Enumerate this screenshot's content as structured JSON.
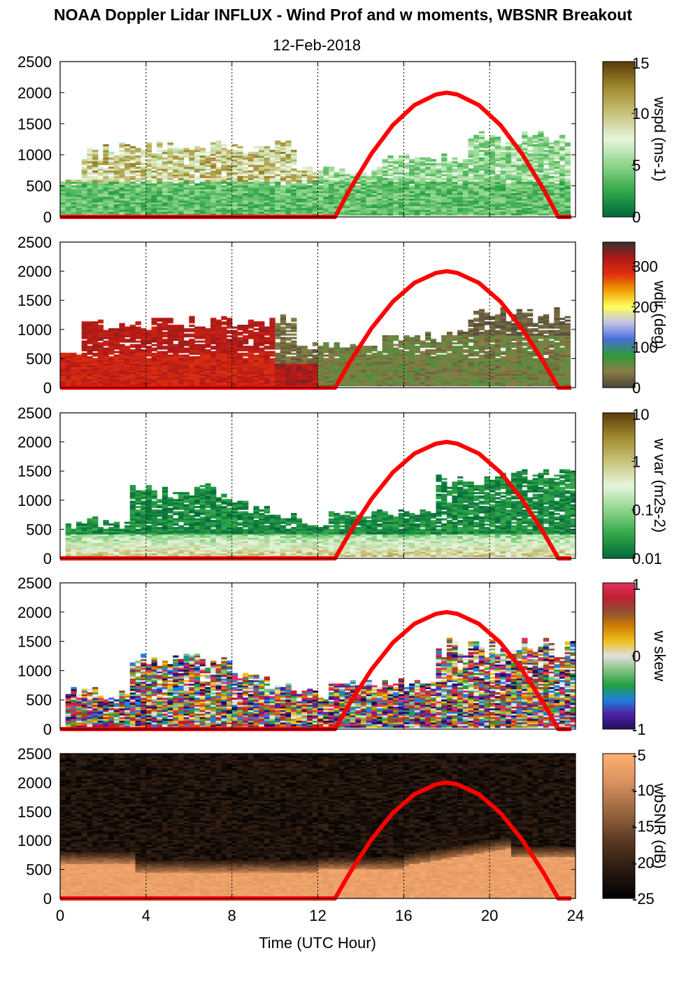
{
  "title": "NOAA Doppler Lidar INFLUX - Wind Prof and w moments, WBSNR Breakout",
  "date": "12-Feb-2018",
  "chart_data": {
    "type": "heatmap",
    "xlabel": "Time (UTC Hour)",
    "xlim": [
      0,
      24
    ],
    "xticks": [
      "0",
      "4",
      "8",
      "12",
      "16",
      "20",
      "24"
    ],
    "ylim": [
      0,
      2500
    ],
    "yticks": [
      "0",
      "500",
      "1000",
      "1500",
      "2000",
      "2500"
    ],
    "grid": "vertical dotted lines at 4-hour intervals",
    "overlay": {
      "name": "solar elevation curve",
      "color": "#ff0000",
      "x": [
        0,
        12.8,
        13.5,
        14.5,
        15.5,
        16.5,
        17.5,
        18,
        18.5,
        19.5,
        20.5,
        21.5,
        22.5,
        23.2,
        23.8
      ],
      "y": [
        0,
        0,
        450,
        1020,
        1480,
        1800,
        1970,
        2000,
        1970,
        1800,
        1480,
        1020,
        450,
        0,
        0
      ]
    },
    "panels": [
      {
        "id": "wspd",
        "colorbar_label": "wspd (ms-1)",
        "colorbar_ticks": [
          "0",
          "5",
          "10",
          "15"
        ],
        "colorbar_range": [
          0,
          15
        ],
        "colors": [
          "#00693a",
          "#33a84a",
          "#8fd58a",
          "#e5f5dc",
          "#c8c27a",
          "#a08a2e",
          "#5c3a0a"
        ],
        "description": "wind speed: greens (2-6 m/s) below ~600 m, olive/brown patches 600-1200 m until ~12 UTC"
      },
      {
        "id": "wdir",
        "colorbar_label": "wdir (deg)",
        "colorbar_ticks": [
          "0",
          "100",
          "200",
          "300"
        ],
        "colorbar_range": [
          0,
          360
        ],
        "colors": [
          "#4a4238",
          "#8a7d45",
          "#2f9a3a",
          "#4a6fd8",
          "#c0c0e8",
          "#ffff60",
          "#f0a000",
          "#e03010",
          "#b01818",
          "#3a3030"
        ],
        "description": "wind direction: red/orange (~280-320 deg) before 10 UTC, olive-dark brown (~0-60 deg) after"
      },
      {
        "id": "wvar",
        "colorbar_label": "w var (m2s-2)",
        "colorbar_ticks": [
          "0.01",
          "0.1",
          "1",
          "10"
        ],
        "colorbar_range": [
          0.01,
          10
        ],
        "colorbar_scale": "log",
        "colors": [
          "#00693a",
          "#33a84a",
          "#8fd58a",
          "#e5f5dc",
          "#c8c27a",
          "#a08a2e",
          "#5c3a0a"
        ],
        "description": "vertical velocity variance: mostly dark green (~0.01-0.1), lighter greens near surface"
      },
      {
        "id": "wskew",
        "colorbar_label": "w skew",
        "colorbar_ticks": [
          "-1",
          "0",
          "1"
        ],
        "colorbar_range": [
          -1,
          1
        ],
        "colors": [
          "#201060",
          "#5020a0",
          "#2080e0",
          "#20a040",
          "#80c080",
          "#e0e0e0",
          "#f0c020",
          "#d08000",
          "#905030",
          "#c02030",
          "#e03060"
        ],
        "description": "vertical velocity skewness: mixed positive and negative cells below ~1300 m"
      },
      {
        "id": "wbsnr",
        "colorbar_label": "wbSNR (dB)",
        "colorbar_ticks": [
          "-25",
          "-20",
          "-15",
          "-10",
          "-5"
        ],
        "colorbar_range": [
          -25,
          -5
        ],
        "colors": [
          "#000000",
          "#2a1a10",
          "#5a3a22",
          "#9a6640",
          "#d89060",
          "#ffb070"
        ],
        "description": "wideband SNR: bright (~-6 dB) below ~500-800 m, dark (~-22 dB) above"
      }
    ]
  }
}
